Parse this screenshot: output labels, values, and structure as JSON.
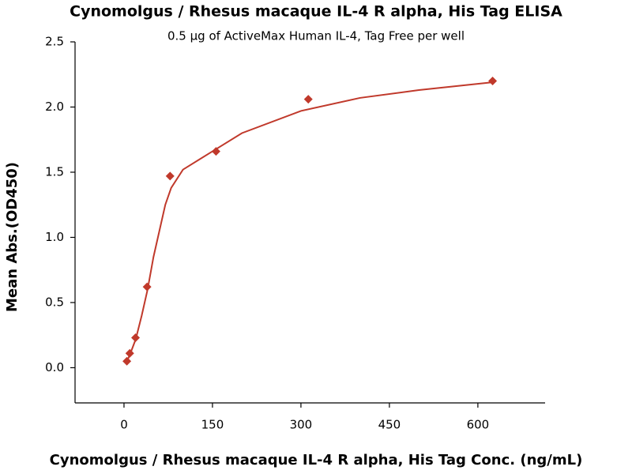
{
  "chart_data": {
    "type": "scatter",
    "title": "Cynomolgus / Rhesus macaque IL-4 R alpha, His Tag ELISA",
    "subtitle": "0.5 μg of ActiveMax Human IL-4, Tag Free per well",
    "x_label": "Cynomolgus / Rhesus macaque IL-4 R alpha, His Tag Conc. (ng/mL)",
    "y_label": "Mean Abs.(OD450)",
    "series": [
      {
        "type": "scatter",
        "color": "#c0392b",
        "x": [
          4.88,
          9.77,
          19.5,
          39.1,
          78.1,
          156,
          312.5,
          625
        ],
        "values": [
          0.05,
          0.11,
          0.23,
          0.62,
          1.47,
          1.66,
          2.06,
          2.2
        ]
      },
      {
        "type": "line",
        "color": "#c0392b",
        "x": [
          5,
          10,
          20,
          30,
          40,
          50,
          60,
          70,
          80,
          100,
          150,
          200,
          300,
          400,
          500,
          625
        ],
        "values": [
          0.05,
          0.1,
          0.22,
          0.4,
          0.6,
          0.85,
          1.05,
          1.25,
          1.38,
          1.52,
          1.66,
          1.8,
          1.97,
          2.07,
          2.13,
          2.19
        ]
      }
    ],
    "xlim": [
      -83,
      714
    ],
    "ylim": [
      -0.27,
      2.5
    ],
    "xticks": [
      0,
      150,
      300,
      450,
      600
    ],
    "yticks": [
      {
        "value": 0,
        "label": "0.0"
      },
      0.5,
      {
        "value": 1,
        "label": "1.0"
      },
      1.5,
      {
        "value": 2,
        "label": "2.0"
      },
      2.5
    ],
    "grid": false
  }
}
